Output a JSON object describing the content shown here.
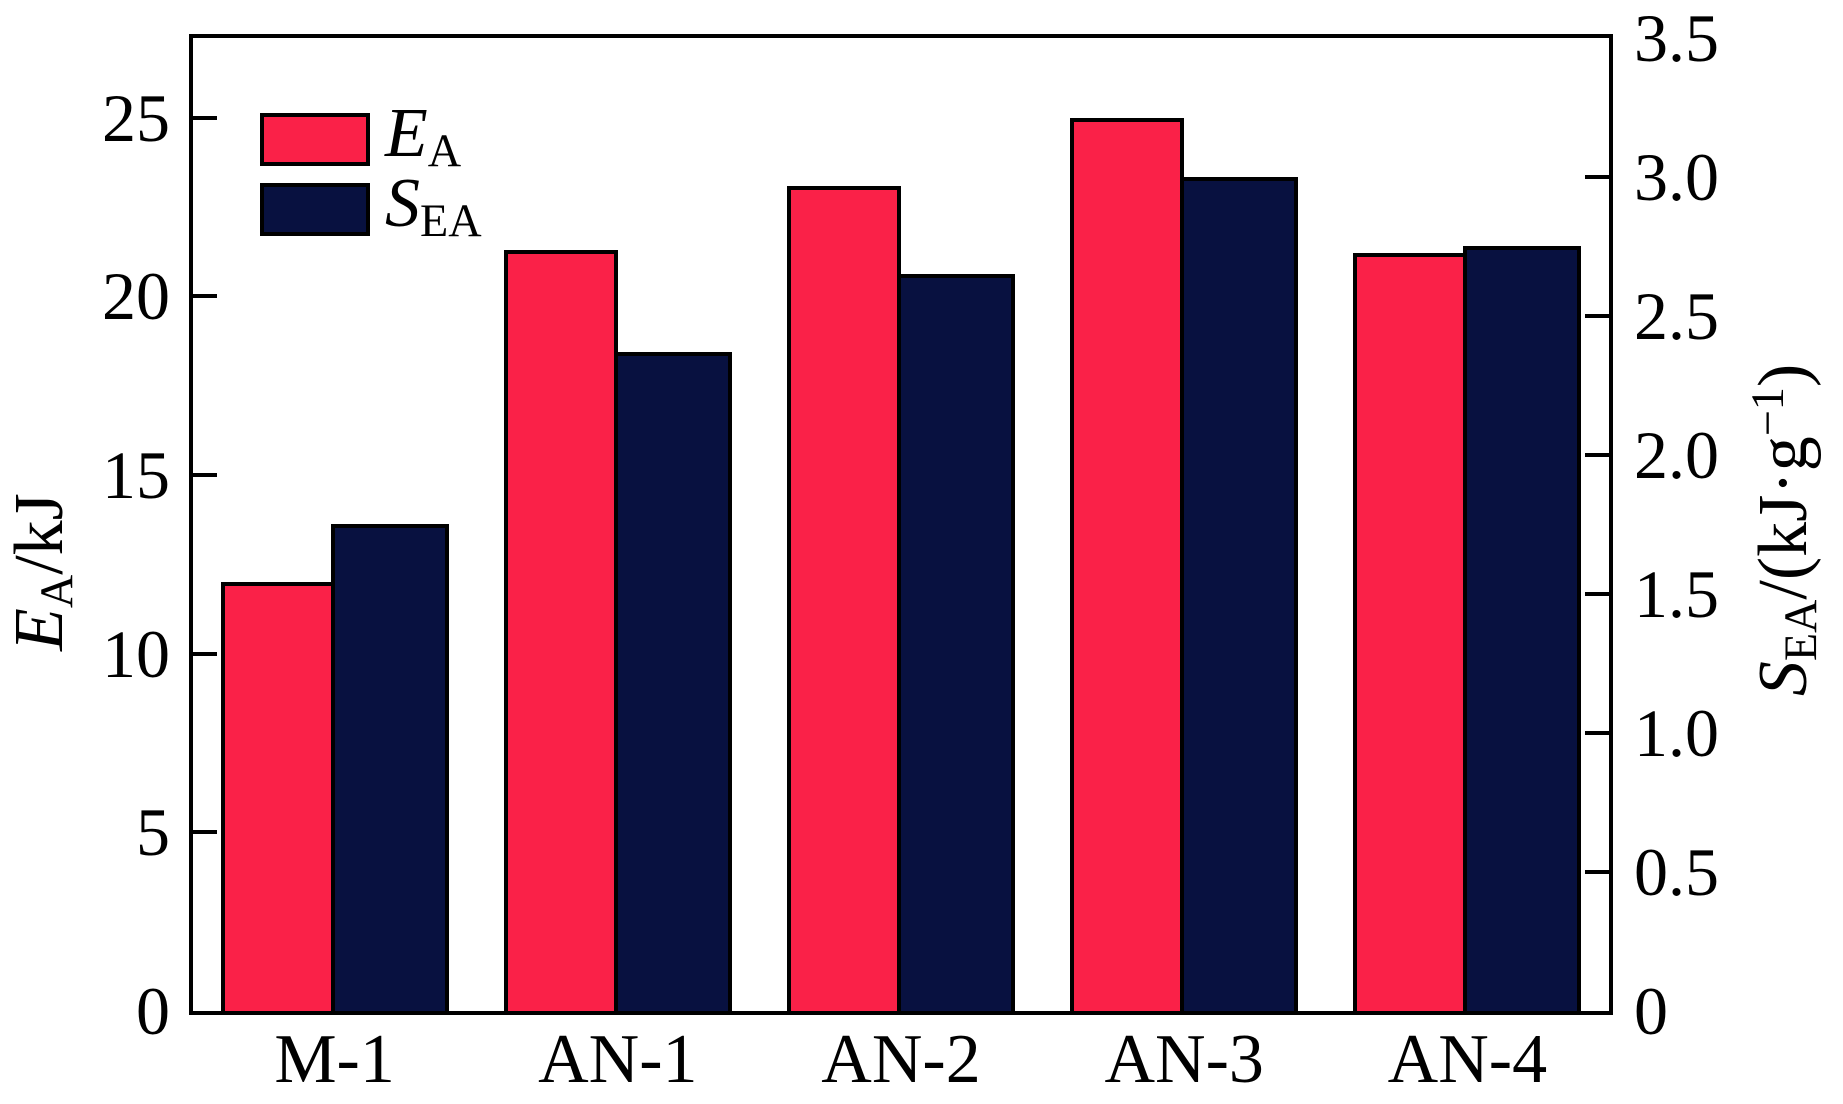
{
  "chart_data": {
    "type": "bar",
    "title": "",
    "categories": [
      "M-1",
      "AN-1",
      "AN-2",
      "AN-3",
      "AN-4"
    ],
    "series": [
      {
        "name": "E_A",
        "axis": "left",
        "color": "#fa2148",
        "values": [
          12.0,
          21.3,
          23.1,
          25.0,
          21.2
        ]
      },
      {
        "name": "S_EA",
        "axis": "right",
        "color": "#081140",
        "values": [
          1.75,
          2.37,
          2.65,
          3.0,
          2.75
        ]
      }
    ],
    "left_axis": {
      "title": "E_A/kJ",
      "tick_labels": [
        "0",
        "5",
        "10",
        "15",
        "20",
        "25"
      ],
      "tick_values": [
        0,
        5,
        10,
        15,
        20,
        25
      ],
      "range": [
        0,
        27.23
      ]
    },
    "right_axis": {
      "title": "S_EA/(kJ·g−1)",
      "tick_labels": [
        "0",
        "0.5",
        "1.0",
        "1.5",
        "2.0",
        "2.5",
        "3.0",
        "3.5"
      ],
      "tick_values": [
        0,
        0.5,
        1.0,
        1.5,
        2.0,
        2.5,
        3.0,
        3.5
      ],
      "range": [
        0,
        3.5
      ]
    },
    "grid": false,
    "legend_position": "top-left-inside"
  },
  "legend": {
    "items": [
      {
        "label_main": "E",
        "label_sub": "A"
      },
      {
        "label_main": "S",
        "label_sub": "EA"
      }
    ]
  },
  "axes": {
    "left": {
      "title_main": "E",
      "title_sub": "A",
      "title_rest": "/kJ"
    },
    "right": {
      "title_main": "S",
      "title_sub": "EA",
      "title_mid": "/(kJ·g",
      "title_sup": "−1",
      "title_end": ")"
    }
  },
  "colors": {
    "ea": "#fa2148",
    "sea": "#081140",
    "axis": "#000000",
    "background": "#ffffff"
  }
}
